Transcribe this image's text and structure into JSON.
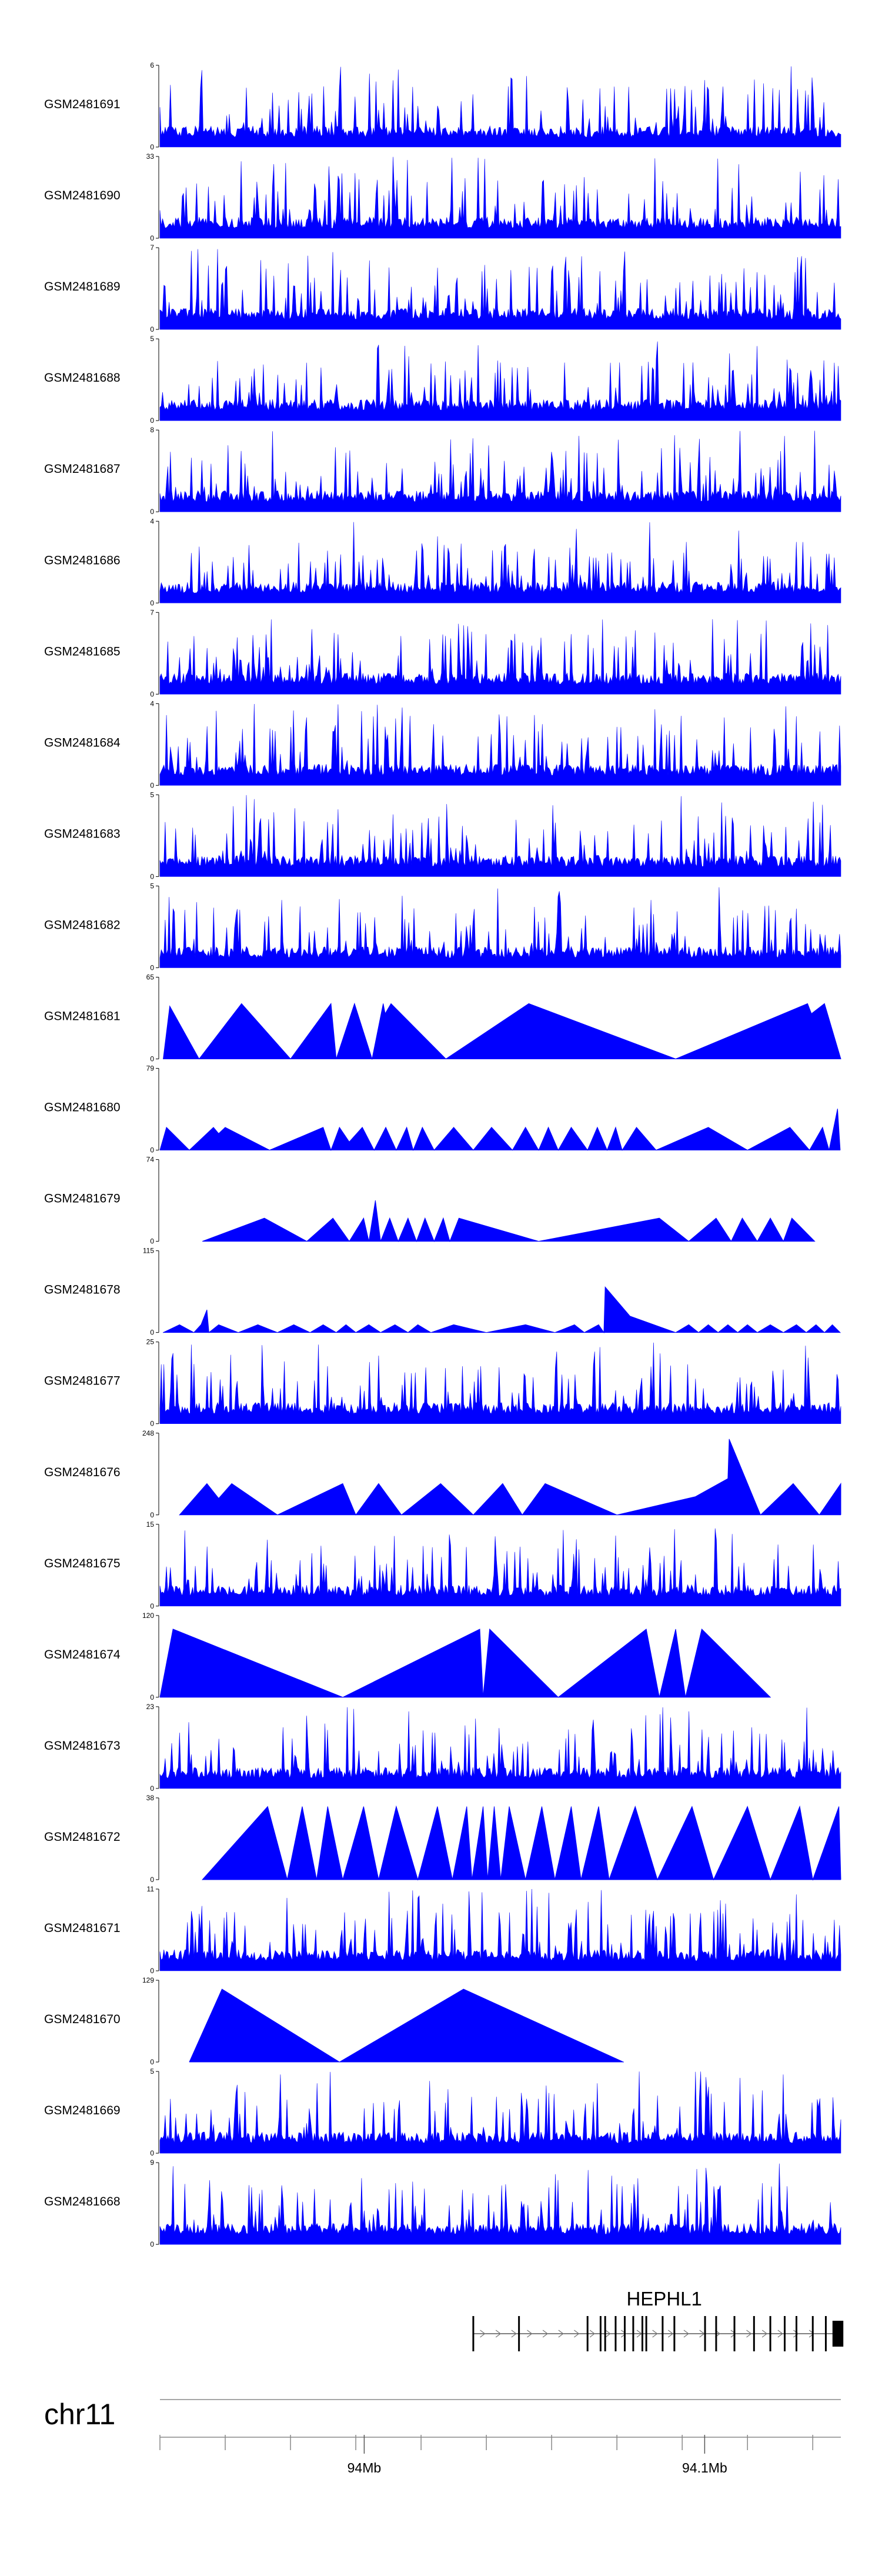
{
  "chart_data": {
    "type": "area",
    "title": "",
    "fill_color": "#0000ff",
    "tracks": [
      {
        "sample": "GSM2481691",
        "ymax": 6,
        "style": "dense",
        "seed": 11
      },
      {
        "sample": "GSM2481690",
        "ymax": 33,
        "style": "sparse",
        "seed": 12
      },
      {
        "sample": "GSM2481689",
        "ymax": 7,
        "style": "dense",
        "seed": 13
      },
      {
        "sample": "GSM2481688",
        "ymax": 5,
        "style": "dense",
        "seed": 14
      },
      {
        "sample": "GSM2481687",
        "ymax": 8,
        "style": "dense",
        "seed": 15
      },
      {
        "sample": "GSM2481686",
        "ymax": 4,
        "style": "dense",
        "seed": 16
      },
      {
        "sample": "GSM2481685",
        "ymax": 7,
        "style": "dense",
        "seed": 17
      },
      {
        "sample": "GSM2481684",
        "ymax": 4,
        "style": "dense",
        "seed": 18
      },
      {
        "sample": "GSM2481683",
        "ymax": 5,
        "style": "dense",
        "seed": 19
      },
      {
        "sample": "GSM2481682",
        "ymax": 5,
        "style": "dense",
        "seed": 20
      },
      {
        "sample": "GSM2481681",
        "ymax": 65,
        "style": "peaks",
        "points": [
          [
            93.9415,
            0
          ],
          [
            93.9425,
            42
          ],
          [
            93.947,
            0
          ],
          [
            93.9535,
            44
          ],
          [
            93.961,
            0
          ],
          [
            93.9672,
            44
          ],
          [
            93.968,
            0
          ],
          [
            93.9708,
            44
          ],
          [
            93.9735,
            0
          ],
          [
            93.9752,
            44
          ],
          [
            93.9755,
            36
          ],
          [
            93.9764,
            44
          ],
          [
            93.9848,
            0
          ],
          [
            93.9975,
            44
          ],
          [
            94.02,
            0
          ],
          [
            94.0402,
            44
          ],
          [
            94.0408,
            36
          ],
          [
            94.0428,
            44
          ],
          [
            94.0453,
            0
          ]
        ]
      },
      {
        "sample": "GSM2481680",
        "ymax": 79,
        "style": "peaks",
        "points": [
          [
            93.941,
            0
          ],
          [
            93.942,
            22
          ],
          [
            93.9455,
            0
          ],
          [
            93.9492,
            22
          ],
          [
            93.95,
            16
          ],
          [
            93.951,
            22
          ],
          [
            93.9578,
            0
          ],
          [
            93.966,
            22
          ],
          [
            93.9672,
            0
          ],
          [
            93.9685,
            22
          ],
          [
            93.97,
            8
          ],
          [
            93.972,
            22
          ],
          [
            93.9738,
            0
          ],
          [
            93.9756,
            22
          ],
          [
            93.9772,
            0
          ],
          [
            93.9788,
            22
          ],
          [
            93.9798,
            0
          ],
          [
            93.9812,
            22
          ],
          [
            93.983,
            0
          ],
          [
            93.986,
            22
          ],
          [
            93.989,
            0
          ],
          [
            93.9918,
            22
          ],
          [
            93.995,
            0
          ],
          [
            93.997,
            22
          ],
          [
            93.999,
            0
          ],
          [
            94.0005,
            22
          ],
          [
            94.002,
            0
          ],
          [
            94.004,
            22
          ],
          [
            94.0065,
            0
          ],
          [
            94.008,
            22
          ],
          [
            94.0095,
            0
          ],
          [
            94.0108,
            22
          ],
          [
            94.0118,
            0
          ],
          [
            94.014,
            22
          ],
          [
            94.017,
            0
          ],
          [
            94.025,
            22
          ],
          [
            94.031,
            0
          ],
          [
            94.0375,
            22
          ],
          [
            94.0405,
            0
          ],
          [
            94.0425,
            22
          ],
          [
            94.0435,
            0
          ],
          [
            94.0448,
            40
          ],
          [
            94.0452,
            0
          ]
        ]
      },
      {
        "sample": "GSM2481679",
        "ymax": 74,
        "style": "peaks",
        "points": [
          [
            93.9475,
            0
          ],
          [
            93.957,
            21
          ],
          [
            93.9635,
            0
          ],
          [
            93.9675,
            21
          ],
          [
            93.97,
            0
          ],
          [
            93.9722,
            21
          ],
          [
            93.973,
            0
          ],
          [
            93.974,
            37
          ],
          [
            93.9748,
            0
          ],
          [
            93.9762,
            21
          ],
          [
            93.9775,
            0
          ],
          [
            93.979,
            21
          ],
          [
            93.9803,
            0
          ],
          [
            93.9816,
            21
          ],
          [
            93.983,
            0
          ],
          [
            93.9844,
            21
          ],
          [
            93.9854,
            0
          ],
          [
            93.9868,
            21
          ],
          [
            93.999,
            0
          ],
          [
            94.0175,
            21
          ],
          [
            94.022,
            0
          ],
          [
            94.0262,
            21
          ],
          [
            94.0285,
            0
          ],
          [
            94.0302,
            21
          ],
          [
            94.0325,
            0
          ],
          [
            94.0345,
            21
          ],
          [
            94.0365,
            0
          ],
          [
            94.0378,
            21
          ],
          [
            94.0413,
            0
          ]
        ]
      },
      {
        "sample": "GSM2481678",
        "ymax": 115,
        "style": "peaks",
        "points": [
          [
            93.9415,
            0
          ],
          [
            93.944,
            11
          ],
          [
            93.9462,
            0
          ],
          [
            93.9473,
            11
          ],
          [
            93.9482,
            32
          ],
          [
            93.9485,
            0
          ],
          [
            93.95,
            11
          ],
          [
            93.953,
            0
          ],
          [
            93.956,
            11
          ],
          [
            93.959,
            0
          ],
          [
            93.9615,
            11
          ],
          [
            93.964,
            0
          ],
          [
            93.966,
            11
          ],
          [
            93.968,
            0
          ],
          [
            93.9695,
            11
          ],
          [
            93.971,
            0
          ],
          [
            93.973,
            11
          ],
          [
            93.9748,
            0
          ],
          [
            93.977,
            11
          ],
          [
            93.979,
            0
          ],
          [
            93.9805,
            11
          ],
          [
            93.9825,
            0
          ],
          [
            93.986,
            11
          ],
          [
            93.991,
            0
          ],
          [
            93.997,
            11
          ],
          [
            94.0015,
            0
          ],
          [
            94.0045,
            11
          ],
          [
            94.006,
            0
          ],
          [
            94.0082,
            11
          ],
          [
            94.009,
            0
          ],
          [
            94.0092,
            64
          ],
          [
            94.013,
            23
          ],
          [
            94.02,
            0
          ],
          [
            94.022,
            11
          ],
          [
            94.0235,
            0
          ],
          [
            94.025,
            11
          ],
          [
            94.0265,
            0
          ],
          [
            94.028,
            11
          ],
          [
            94.0295,
            0
          ],
          [
            94.031,
            11
          ],
          [
            94.0325,
            0
          ],
          [
            94.0345,
            11
          ],
          [
            94.0365,
            0
          ],
          [
            94.0385,
            11
          ],
          [
            94.04,
            0
          ],
          [
            94.0415,
            11
          ],
          [
            94.0428,
            0
          ],
          [
            94.044,
            11
          ],
          [
            94.0452,
            0
          ]
        ]
      },
      {
        "sample": "GSM2481677",
        "ymax": 25,
        "style": "dense",
        "seed": 21
      },
      {
        "sample": "GSM2481676",
        "ymax": 248,
        "style": "peaks",
        "points": [
          [
            93.944,
            0
          ],
          [
            93.9482,
            95
          ],
          [
            93.95,
            50
          ],
          [
            93.952,
            95
          ],
          [
            93.959,
            0
          ],
          [
            93.969,
            95
          ],
          [
            93.971,
            0
          ],
          [
            93.9745,
            95
          ],
          [
            93.978,
            0
          ],
          [
            93.984,
            95
          ],
          [
            93.989,
            0
          ],
          [
            93.9935,
            95
          ],
          [
            93.9965,
            0
          ],
          [
            94.0,
            95
          ],
          [
            94.011,
            0
          ],
          [
            94.023,
            55
          ],
          [
            94.028,
            110
          ],
          [
            94.0282,
            230
          ],
          [
            94.033,
            0
          ],
          [
            94.038,
            95
          ],
          [
            94.042,
            0
          ],
          [
            94.0453,
            95
          ],
          [
            94.0453,
            0
          ]
        ]
      },
      {
        "sample": "GSM2481675",
        "ymax": 15,
        "style": "dense",
        "seed": 22
      },
      {
        "sample": "GSM2481674",
        "ymax": 120,
        "style": "peaks",
        "points": [
          [
            93.941,
            0
          ],
          [
            93.943,
            100
          ],
          [
            93.969,
            0
          ],
          [
            93.99,
            100
          ],
          [
            93.9905,
            0
          ],
          [
            93.9915,
            100
          ],
          [
            94.002,
            0
          ],
          [
            94.0155,
            100
          ],
          [
            94.0175,
            0
          ],
          [
            94.02,
            100
          ],
          [
            94.0215,
            0
          ],
          [
            94.024,
            100
          ],
          [
            94.0345,
            0
          ]
        ]
      },
      {
        "sample": "GSM2481673",
        "ymax": 23,
        "style": "dense",
        "seed": 23
      },
      {
        "sample": "GSM2481672",
        "ymax": 38,
        "style": "peaks",
        "points": [
          [
            93.9475,
            0
          ],
          [
            93.9575,
            34
          ],
          [
            93.9605,
            0
          ],
          [
            93.9628,
            34
          ],
          [
            93.965,
            0
          ],
          [
            93.9667,
            34
          ],
          [
            93.969,
            0
          ],
          [
            93.9722,
            34
          ],
          [
            93.9745,
            0
          ],
          [
            93.9772,
            34
          ],
          [
            93.9805,
            0
          ],
          [
            93.9835,
            34
          ],
          [
            93.9858,
            0
          ],
          [
            93.988,
            34
          ],
          [
            93.9888,
            0
          ],
          [
            93.9905,
            34
          ],
          [
            93.9912,
            0
          ],
          [
            93.9922,
            34
          ],
          [
            93.9932,
            0
          ],
          [
            93.9945,
            34
          ],
          [
            93.997,
            0
          ],
          [
            93.9995,
            34
          ],
          [
            94.0015,
            0
          ],
          [
            94.004,
            34
          ],
          [
            94.0055,
            0
          ],
          [
            94.0082,
            34
          ],
          [
            94.0098,
            0
          ],
          [
            94.0138,
            34
          ],
          [
            94.0172,
            0
          ],
          [
            94.0225,
            34
          ],
          [
            94.0258,
            0
          ],
          [
            94.031,
            34
          ],
          [
            94.0345,
            0
          ],
          [
            94.039,
            34
          ],
          [
            94.041,
            0
          ],
          [
            94.045,
            34
          ],
          [
            94.0453,
            0
          ]
        ]
      },
      {
        "sample": "GSM2481671",
        "ymax": 11,
        "style": "dense",
        "seed": 24
      },
      {
        "sample": "GSM2481670",
        "ymax": 129,
        "style": "peaks",
        "points": [
          [
            93.9455,
            0
          ],
          [
            93.9505,
            115
          ],
          [
            93.9685,
            0
          ],
          [
            93.9875,
            115
          ],
          [
            94.012,
            0
          ]
        ]
      },
      {
        "sample": "GSM2481669",
        "ymax": 5,
        "style": "dense",
        "seed": 25
      },
      {
        "sample": "GSM2481668",
        "ymax": 9,
        "style": "dense",
        "seed": 26
      }
    ],
    "gene": {
      "name": "HEPHL1",
      "strand": "+",
      "start": 93.989,
      "end": 94.0455,
      "exons": [
        93.989,
        93.996,
        94.0065,
        94.0085,
        94.0092,
        94.0108,
        94.0122,
        94.0135,
        94.0149,
        94.0155,
        94.018,
        94.0198,
        94.0245,
        94.0262,
        94.029,
        94.032,
        94.0345,
        94.0367,
        94.0385,
        94.041,
        94.043
      ],
      "cds_end": 94.0442
    },
    "axis": {
      "chromosome": "chr11",
      "range": [
        93.941,
        94.0453
      ],
      "ticks": [
        93.941,
        93.951,
        93.961,
        93.971,
        93.981,
        93.991,
        94.001,
        94.011,
        94.021,
        94.031,
        94.041
      ],
      "labeled_ticks": [
        {
          "value": 94.0,
          "label": "94Mb"
        },
        {
          "value": 94.1,
          "label": "94.1Mb"
        }
      ]
    }
  }
}
